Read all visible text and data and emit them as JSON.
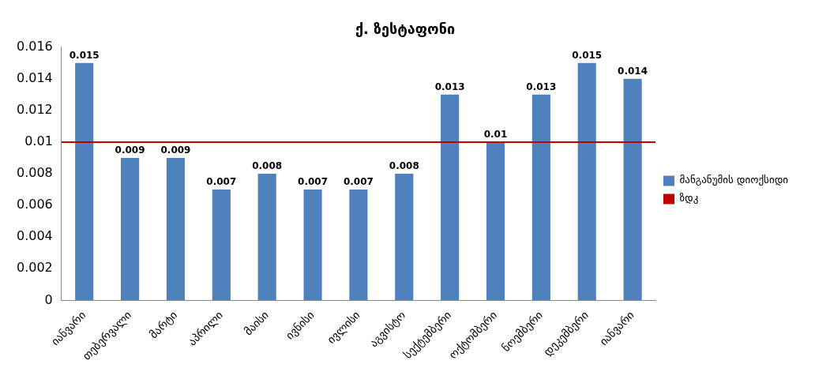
{
  "chart_data": {
    "type": "bar",
    "title": "ქ. ზესტაფონი",
    "categories": [
      "იანვარი",
      "თებერვალი",
      "მარტი",
      "აპრილი",
      "მაისი",
      "ივნისი",
      "ივლისი",
      "აგვისტო",
      "სექტემბერი",
      "ოქტომბერი",
      "ნოემბერი",
      "დეკემბერი",
      "იანვარი"
    ],
    "series": [
      {
        "name": "მანგანუმის დიოქსიდი",
        "color": "#4f81bd",
        "values": [
          0.015,
          0.009,
          0.009,
          0.007,
          0.008,
          0.007,
          0.007,
          0.008,
          0.013,
          0.01,
          0.013,
          0.015,
          0.014
        ]
      }
    ],
    "ref_lines": [
      {
        "axis": "y",
        "value": 0.01,
        "label": "ზდკ",
        "color": "#c00000"
      }
    ],
    "ylim": [
      0,
      0.016
    ],
    "yticks": [
      0,
      0.002,
      0.004,
      0.006,
      0.008,
      0.01,
      0.012,
      0.014,
      0.016
    ],
    "data_labels": true,
    "legend": "right",
    "grid": false
  }
}
